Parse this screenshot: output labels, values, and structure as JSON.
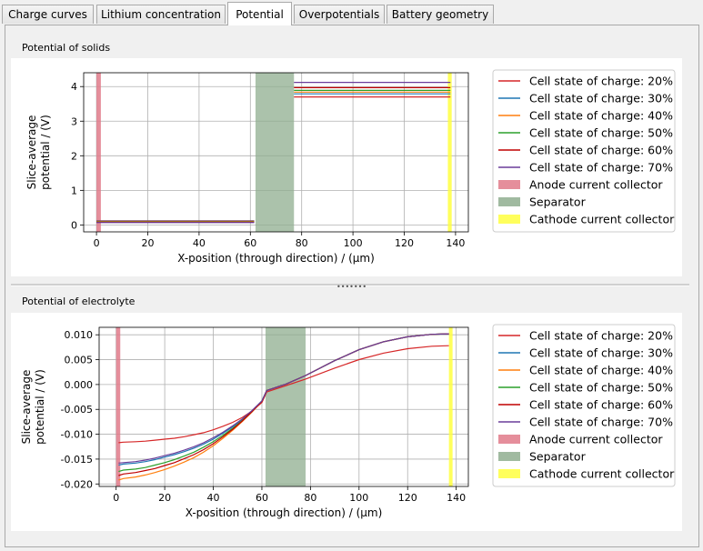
{
  "tabs": [
    {
      "label": "Charge curves"
    },
    {
      "label": "Lithium concentration"
    },
    {
      "label": "Potential"
    },
    {
      "label": "Overpotentials"
    },
    {
      "label": "Battery geometry"
    }
  ],
  "active_tab": "Potential",
  "colors": {
    "series": [
      "#d62728",
      "#1f77b4",
      "#ff7f0e",
      "#2ca02c",
      "#c00000",
      "#6a3d9a"
    ],
    "anode": "#e07a8a",
    "separator": "#8fae8f",
    "cathode": "#ffff40"
  },
  "chart_data": [
    {
      "type": "line",
      "section_title": "Potential of solids",
      "xlabel": "X-position (through direction) / (µm)",
      "ylabel_line1": "Slice-average",
      "ylabel_line2": "potential / (V)",
      "xlim": [
        -5,
        145
      ],
      "ylim": [
        -0.2,
        4.4
      ],
      "xticks": [
        "0",
        "20",
        "40",
        "60",
        "80",
        "100",
        "120",
        "140"
      ],
      "yticks": [
        "0",
        "1",
        "2",
        "3",
        "4"
      ],
      "grid": true,
      "legend_position": "right",
      "regions": [
        {
          "name": "Anode current collector",
          "x": [
            0,
            1.7
          ]
        },
        {
          "name": "Separator",
          "x": [
            62,
            77
          ]
        },
        {
          "name": "Cathode current collector",
          "x": [
            137,
            138.5
          ]
        }
      ],
      "series": [
        {
          "name": "Cell state of charge:  20%",
          "anode": 0.12,
          "cathode": 3.7
        },
        {
          "name": "Cell state of charge:  30%",
          "anode": 0.11,
          "cathode": 3.79
        },
        {
          "name": "Cell state of charge:  40%",
          "anode": 0.1,
          "cathode": 3.84
        },
        {
          "name": "Cell state of charge:  50%",
          "anode": 0.09,
          "cathode": 3.89
        },
        {
          "name": "Cell state of charge:  60%",
          "anode": 0.08,
          "cathode": 3.97
        },
        {
          "name": "Cell state of charge:  70%",
          "anode": 0.07,
          "cathode": 4.12
        }
      ]
    },
    {
      "type": "line",
      "section_title": "Potential of electrolyte",
      "xlabel": "X-position (through direction) / (µm)",
      "ylabel_line1": "Slice-average",
      "ylabel_line2": "potential / (V)",
      "xlim": [
        -7,
        145
      ],
      "ylim": [
        -0.0205,
        0.0115
      ],
      "xticks": [
        "0",
        "20",
        "40",
        "60",
        "80",
        "100",
        "120",
        "140"
      ],
      "yticks": [
        "0.010",
        "0.005",
        "0.000",
        "-0.005",
        "-0.010",
        "-0.015",
        "-0.020"
      ],
      "grid": true,
      "legend_position": "right",
      "regions": [
        {
          "name": "Anode current collector",
          "x": [
            0,
            1.7
          ]
        },
        {
          "name": "Separator",
          "x": [
            61.5,
            78
          ]
        },
        {
          "name": "Cathode current collector",
          "x": [
            137,
            138.5
          ]
        }
      ],
      "x": [
        1,
        3,
        8,
        12,
        16,
        20,
        24,
        28,
        32,
        36,
        40,
        44,
        48,
        52,
        56,
        60,
        62,
        70,
        78,
        90,
        100,
        110,
        120,
        130,
        137
      ],
      "series": [
        {
          "name": "Cell state of charge:  20%",
          "values": [
            -0.0117,
            -0.0116,
            -0.0115,
            -0.0114,
            -0.0112,
            -0.011,
            -0.0108,
            -0.0105,
            -0.0101,
            -0.0097,
            -0.0091,
            -0.0084,
            -0.0076,
            -0.0066,
            -0.0053,
            -0.0036,
            -0.0015,
            -0.0002,
            0.0011,
            0.0033,
            0.005,
            0.0063,
            0.0072,
            0.0077,
            0.0078
          ]
        },
        {
          "name": "Cell state of charge:  30%",
          "values": [
            -0.0162,
            -0.016,
            -0.0158,
            -0.0155,
            -0.0151,
            -0.0146,
            -0.0141,
            -0.0135,
            -0.0128,
            -0.012,
            -0.011,
            -0.0098,
            -0.0085,
            -0.007,
            -0.0053,
            -0.0033,
            -0.0012,
            0.0001,
            0.0018,
            0.0048,
            0.007,
            0.0086,
            0.0096,
            0.0101,
            0.0102
          ]
        },
        {
          "name": "Cell state of charge:  40%",
          "values": [
            -0.0192,
            -0.0189,
            -0.0186,
            -0.0182,
            -0.0177,
            -0.0171,
            -0.0164,
            -0.0156,
            -0.0147,
            -0.0136,
            -0.0123,
            -0.0108,
            -0.0092,
            -0.0074,
            -0.0055,
            -0.0034,
            -0.0012,
            0.0001,
            0.0018,
            0.0048,
            0.007,
            0.0086,
            0.0096,
            0.0101,
            0.0102
          ]
        },
        {
          "name": "Cell state of charge:  50%",
          "values": [
            -0.0175,
            -0.0172,
            -0.017,
            -0.0167,
            -0.0162,
            -0.0157,
            -0.0151,
            -0.0144,
            -0.0136,
            -0.0126,
            -0.0115,
            -0.0102,
            -0.0088,
            -0.0072,
            -0.0054,
            -0.0033,
            -0.0012,
            0.0001,
            0.0018,
            0.0048,
            0.007,
            0.0086,
            0.0096,
            0.0101,
            0.0102
          ]
        },
        {
          "name": "Cell state of charge:  60%",
          "values": [
            -0.0183,
            -0.018,
            -0.0177,
            -0.0173,
            -0.0169,
            -0.0163,
            -0.0157,
            -0.0149,
            -0.0141,
            -0.0131,
            -0.0119,
            -0.0105,
            -0.009,
            -0.0073,
            -0.0054,
            -0.0034,
            -0.0012,
            0.0001,
            0.0018,
            0.0048,
            0.007,
            0.0086,
            0.0096,
            0.0101,
            0.0102
          ]
        },
        {
          "name": "Cell state of charge:  70%",
          "values": [
            -0.0158,
            -0.0157,
            -0.0155,
            -0.0152,
            -0.0148,
            -0.0143,
            -0.0138,
            -0.0132,
            -0.0125,
            -0.0117,
            -0.0107,
            -0.0096,
            -0.0083,
            -0.0069,
            -0.0052,
            -0.0033,
            -0.0012,
            0.0001,
            0.0018,
            0.0048,
            0.007,
            0.0086,
            0.0096,
            0.0101,
            0.0102
          ]
        }
      ]
    }
  ]
}
